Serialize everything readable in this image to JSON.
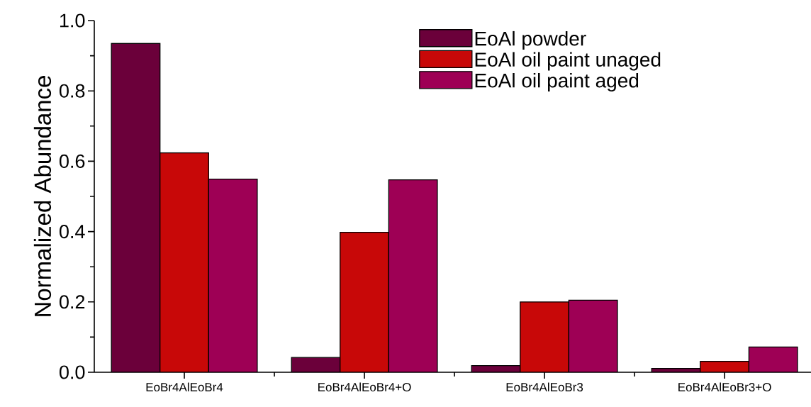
{
  "chart_data": {
    "type": "bar",
    "ylabel": "Normalized Abundance",
    "categories": [
      "EoBr4AlEoBr4",
      "EoBr4AlEoBr4+O",
      "EoBr4AlEoBr3",
      "EoBr4AlEoBr3+O"
    ],
    "series": [
      {
        "name": "EoAl powder",
        "color": "#6b003a",
        "values": [
          0.935,
          0.042,
          0.019,
          0.011
        ]
      },
      {
        "name": "EoAl oil paint unaged",
        "color": "#c80808",
        "values": [
          0.624,
          0.398,
          0.2,
          0.031
        ]
      },
      {
        "name": "EoAl oil paint aged",
        "color": "#9e0055",
        "values": [
          0.549,
          0.547,
          0.205,
          0.072
        ]
      }
    ],
    "ylim": [
      0,
      1.0
    ],
    "yticks": [
      {
        "value": 0,
        "label": "0.0"
      },
      {
        "value": 0.2,
        "label": "0.2"
      },
      {
        "value": 0.4,
        "label": "0.4"
      },
      {
        "value": 0.6,
        "label": "0.6"
      },
      {
        "value": 0.8,
        "label": "0.8"
      },
      {
        "value": 1.0,
        "label": "1.0"
      }
    ],
    "grid": false,
    "legend": "top right"
  }
}
